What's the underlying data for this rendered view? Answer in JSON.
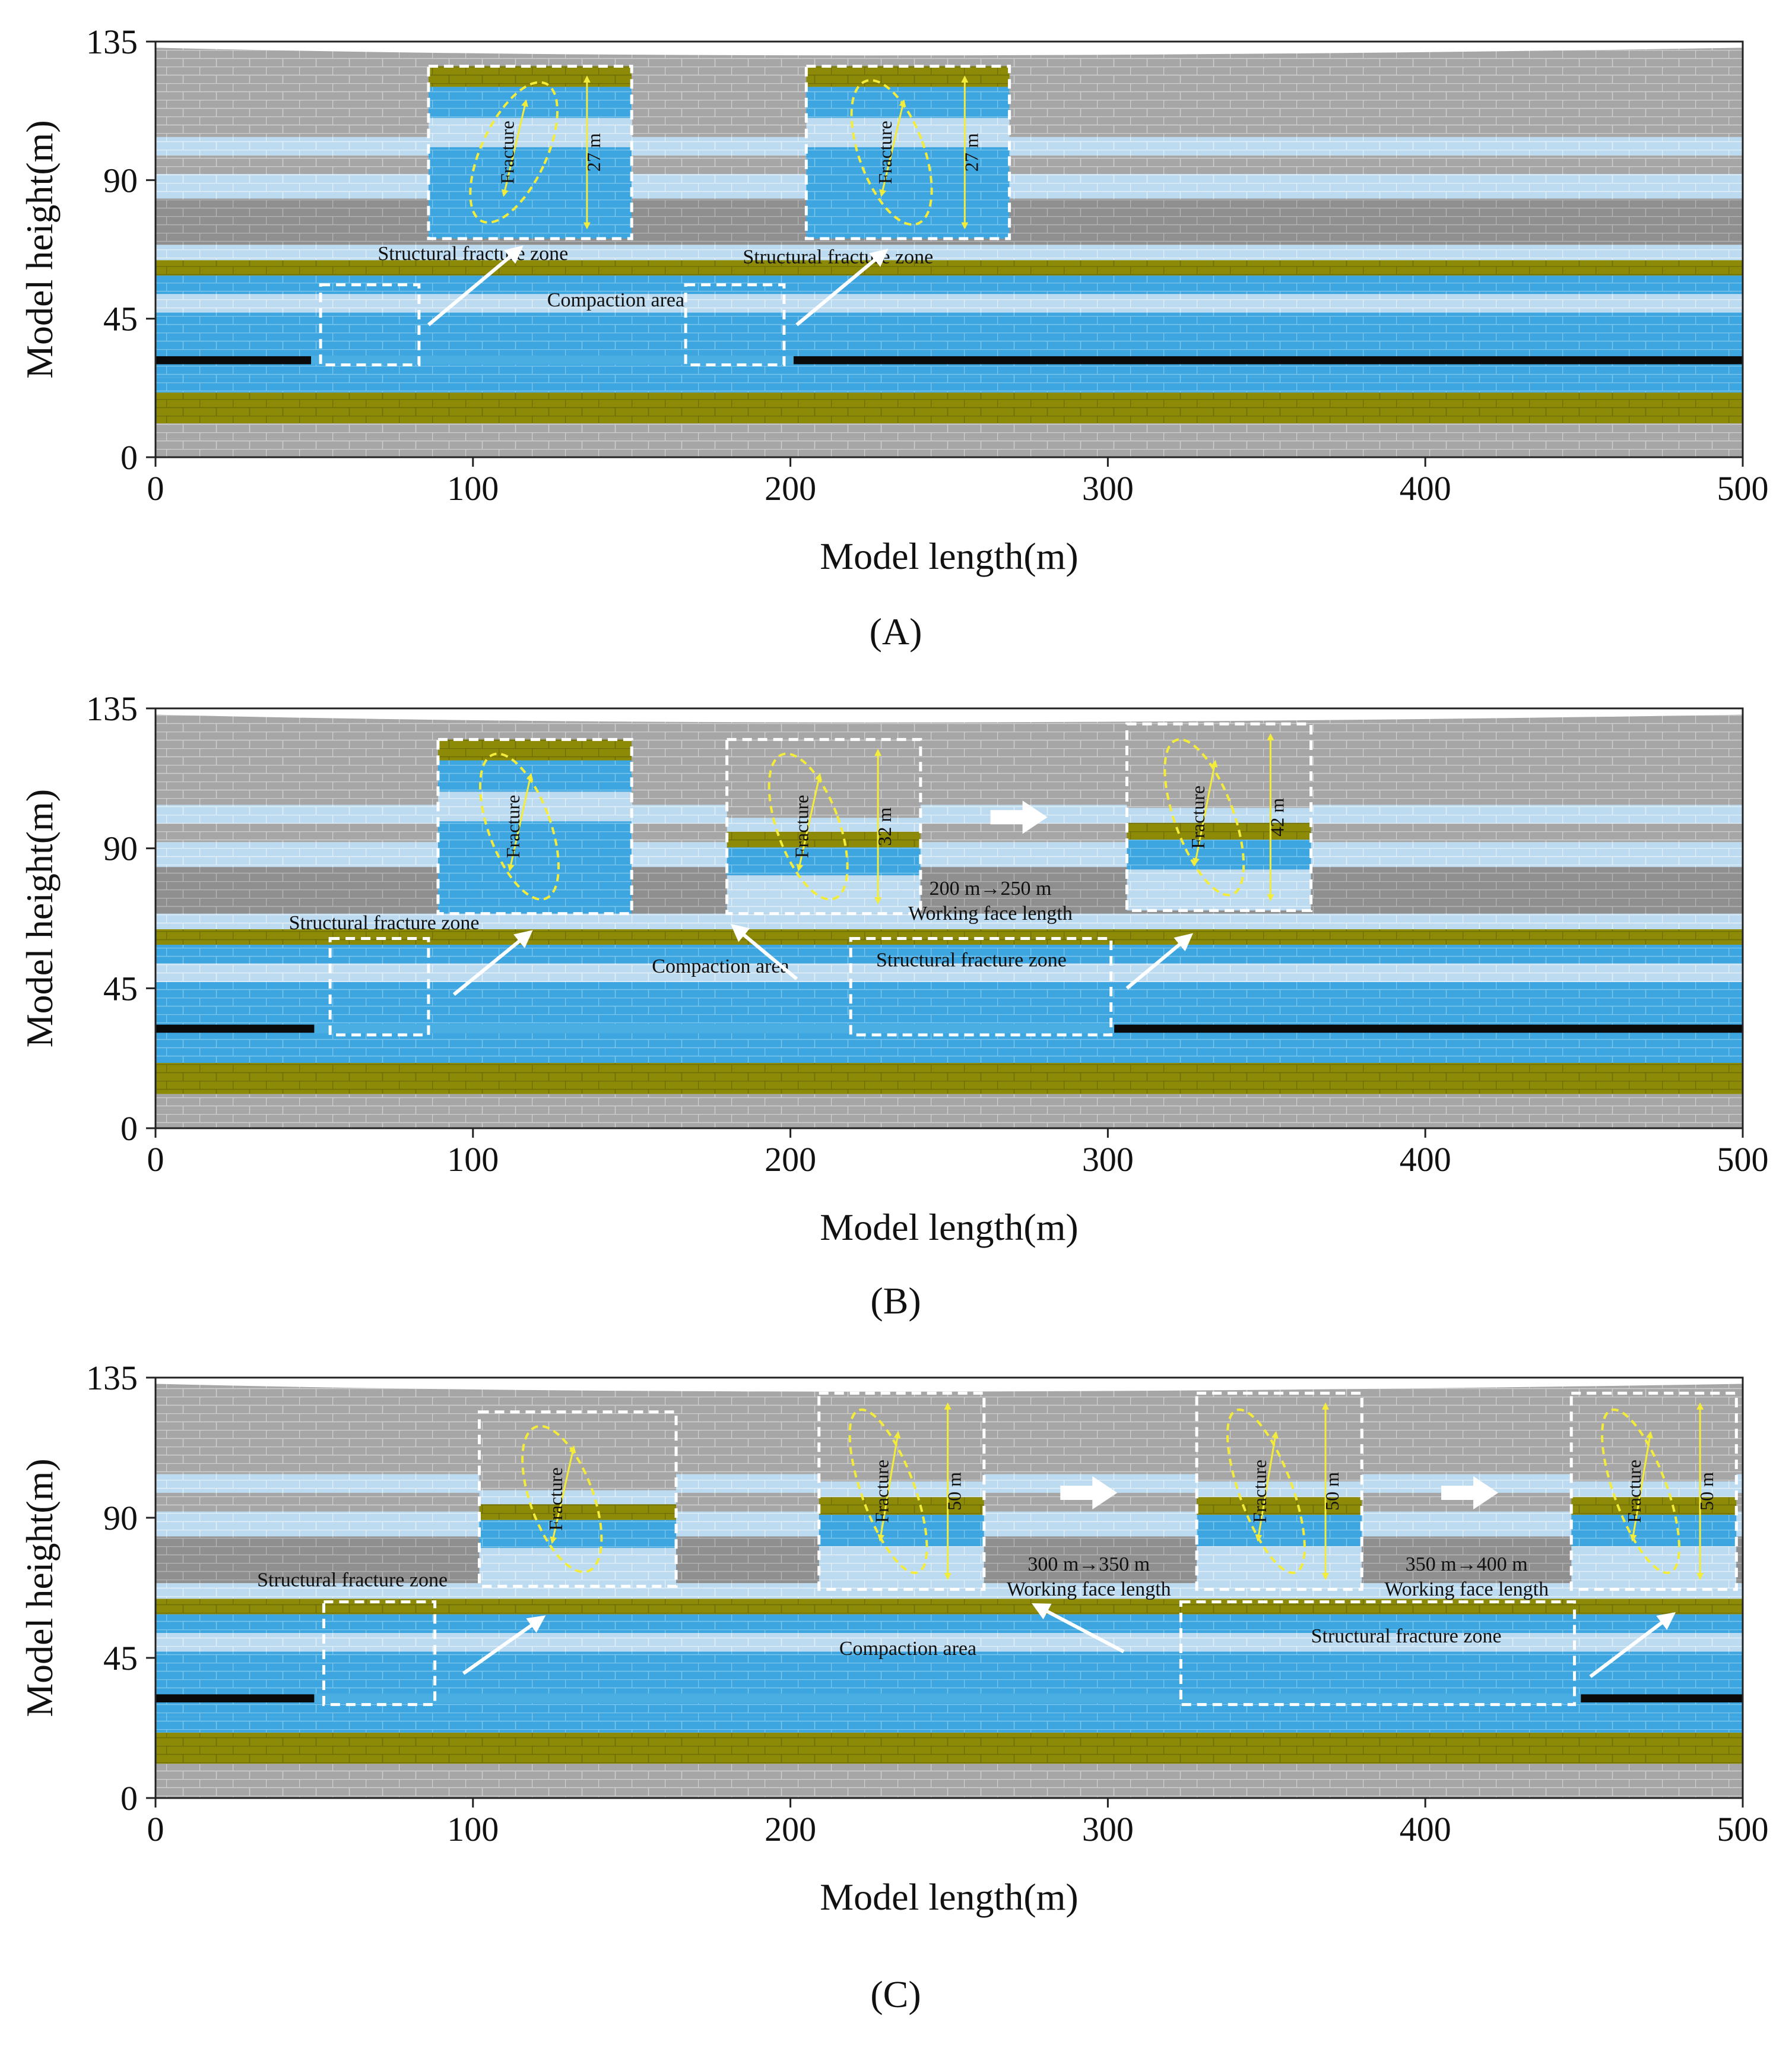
{
  "panels": [
    {
      "id": "A",
      "caption": "(A)",
      "x_axis": {
        "label": "Model length(m)",
        "ticks": [
          "0",
          "100",
          "200",
          "300",
          "400",
          "500"
        ],
        "range": [
          0,
          500
        ]
      },
      "y_axis": {
        "label": "Model height(m)",
        "ticks": [
          "0",
          "45",
          "90",
          "135"
        ],
        "range": [
          0,
          135
        ]
      },
      "zone_labels": [
        {
          "text": "Structural fracture zone",
          "at": [
            100,
            64
          ]
        },
        {
          "text": "Structural fracture zone",
          "at": [
            215,
            63
          ]
        },
        {
          "text": "Compaction area",
          "at": [
            145,
            49
          ]
        }
      ],
      "dashed_regions": [
        {
          "x": [
            52,
            83
          ],
          "y": [
            30,
            56
          ]
        },
        {
          "x": [
            167,
            198
          ],
          "y": [
            30,
            56
          ]
        }
      ],
      "goaf_seams": [
        {
          "x": [
            0,
            49
          ],
          "y": 31.5
        },
        {
          "x": [
            201,
            500
          ],
          "y": 31.5
        }
      ],
      "insets": [
        {
          "x": [
            86,
            150
          ],
          "y": [
            71,
            127
          ],
          "fracture_label": "Fracture",
          "height_label": "27 m",
          "pointer_from": [
            86,
            43
          ],
          "pointer_to": [
            115,
            68
          ]
        },
        {
          "x": [
            205,
            269
          ],
          "y": [
            71,
            127
          ],
          "fracture_label": "Fracture",
          "height_label": "27 m",
          "pointer_from": [
            202,
            43
          ],
          "pointer_to": [
            230,
            67
          ]
        }
      ],
      "advance_notes": []
    },
    {
      "id": "B",
      "caption": "(B)",
      "x_axis": {
        "label": "Model length(m)",
        "ticks": [
          "0",
          "100",
          "200",
          "300",
          "400",
          "500"
        ],
        "range": [
          0,
          500
        ]
      },
      "y_axis": {
        "label": "Model height(m)",
        "ticks": [
          "0",
          "45",
          "90",
          "135"
        ],
        "range": [
          0,
          135
        ]
      },
      "zone_labels": [
        {
          "text": "Structural fracture zone",
          "at": [
            72,
            64
          ]
        },
        {
          "text": "Compaction area",
          "at": [
            178,
            50
          ]
        },
        {
          "text": "Structural fracture zone",
          "at": [
            257,
            52
          ]
        }
      ],
      "dashed_regions": [
        {
          "x": [
            55,
            86
          ],
          "y": [
            30,
            61
          ]
        },
        {
          "x": [
            219,
            301
          ],
          "y": [
            30,
            61
          ]
        }
      ],
      "goaf_seams": [
        {
          "x": [
            0,
            50
          ],
          "y": 32
        },
        {
          "x": [
            302,
            500
          ],
          "y": 32
        }
      ],
      "insets": [
        {
          "x": [
            89,
            150
          ],
          "y": [
            69,
            125
          ],
          "fracture_label": "Fracture",
          "height_label": "",
          "pointer_from": [
            94,
            43
          ],
          "pointer_to": [
            118,
            63
          ]
        },
        {
          "x": [
            180,
            241
          ],
          "y": [
            69,
            125
          ],
          "fracture_label": "Fracture",
          "height_label": "32 m",
          "pointer_from": [
            202,
            48
          ],
          "pointer_to": [
            182,
            65
          ]
        },
        {
          "x": [
            306,
            364
          ],
          "y": [
            70,
            130
          ],
          "fracture_label": "Fracture",
          "height_label": "42 m",
          "pointer_from": [
            306,
            45
          ],
          "pointer_to": [
            326,
            62
          ]
        }
      ],
      "advance_notes": [
        {
          "lines": [
            "200 m→250 m",
            "Working face length"
          ],
          "at": [
            263,
            75
          ],
          "arrow_at": [
            272,
            100
          ]
        }
      ]
    },
    {
      "id": "C",
      "caption": "(C)",
      "x_axis": {
        "label": "Model length(m)",
        "ticks": [
          "0",
          "100",
          "200",
          "300",
          "400",
          "500"
        ],
        "range": [
          0,
          500
        ]
      },
      "y_axis": {
        "label": "Model height(m)",
        "ticks": [
          "0",
          "45",
          "90",
          "135"
        ],
        "range": [
          0,
          135
        ]
      },
      "zone_labels": [
        {
          "text": "Structural fracture zone",
          "at": [
            62,
            68
          ]
        },
        {
          "text": "Compaction area",
          "at": [
            237,
            46
          ]
        },
        {
          "text": "Structural fracture zone",
          "at": [
            394,
            50
          ]
        }
      ],
      "dashed_regions": [
        {
          "x": [
            53,
            88
          ],
          "y": [
            30,
            63
          ]
        },
        {
          "x": [
            323,
            447
          ],
          "y": [
            30,
            63
          ]
        }
      ],
      "goaf_seams": [
        {
          "x": [
            0,
            50
          ],
          "y": 32
        },
        {
          "x": [
            449,
            500
          ],
          "y": 32
        }
      ],
      "insets": [
        {
          "x": [
            102,
            164
          ],
          "y": [
            68,
            124
          ],
          "fracture_label": "Fracture",
          "height_label": "",
          "pointer_from": [
            97,
            40
          ],
          "pointer_to": [
            122,
            58
          ]
        },
        {
          "x": [
            209,
            261
          ],
          "y": [
            67,
            130
          ],
          "fracture_label": "Fracture",
          "height_label": "50 m",
          "pointer_from": [
            305,
            47
          ],
          "pointer_to": [
            277,
            62
          ]
        },
        {
          "x": [
            328,
            380
          ],
          "y": [
            67,
            130
          ],
          "fracture_label": "Fracture",
          "height_label": "50 m",
          "pointer_from": [
            0,
            0
          ],
          "pointer_to": [
            0,
            0
          ]
        },
        {
          "x": [
            446,
            498
          ],
          "y": [
            67,
            130
          ],
          "fracture_label": "Fracture",
          "height_label": "50 m",
          "pointer_from": [
            452,
            39
          ],
          "pointer_to": [
            478,
            59
          ]
        }
      ],
      "advance_notes": [
        {
          "lines": [
            "300 m→350 m",
            "Working face length"
          ],
          "at": [
            294,
            73
          ],
          "arrow_at": [
            294,
            98
          ]
        },
        {
          "lines": [
            "350 m→400 m",
            "Working face length"
          ],
          "at": [
            413,
            73
          ],
          "arrow_at": [
            414,
            98
          ]
        }
      ]
    }
  ],
  "colors": {
    "rock_gray": "#a6a6a6",
    "rock_gray_dark": "#8f8f8f",
    "aquifer_blue": "#3da6e0",
    "light_blue": "#bcdbf0",
    "key_stratum_olive": "#8c8a06",
    "coal_black": "#0a0a0a",
    "fracture_yellow": "#f4ec3a",
    "dash_white": "#ffffff",
    "arrow_white": "#ffffff"
  }
}
